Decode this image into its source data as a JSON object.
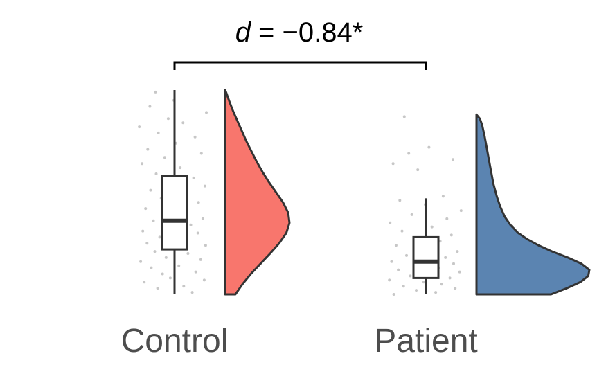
{
  "chart_data": {
    "type": "raincloud",
    "title": "",
    "xlabel": "",
    "ylabel": "",
    "categories": [
      "Control",
      "Patient"
    ],
    "ylim": [
      0,
      1
    ],
    "annotation": {
      "symbol": "d",
      "text": " = −0.84*",
      "between": [
        "Control",
        "Patient"
      ]
    },
    "groups": [
      {
        "name": "Control",
        "color": "#F8766D",
        "box": {
          "min": 0.0,
          "q1": 0.22,
          "median": 0.36,
          "q3": 0.58,
          "max": 1.0
        },
        "density": [
          {
            "y": 0.0,
            "d": 0.16
          },
          {
            "y": 0.05,
            "d": 0.27
          },
          {
            "y": 0.1,
            "d": 0.4
          },
          {
            "y": 0.15,
            "d": 0.55
          },
          {
            "y": 0.2,
            "d": 0.7
          },
          {
            "y": 0.25,
            "d": 0.84
          },
          {
            "y": 0.3,
            "d": 0.95
          },
          {
            "y": 0.35,
            "d": 1.0
          },
          {
            "y": 0.4,
            "d": 0.98
          },
          {
            "y": 0.45,
            "d": 0.9
          },
          {
            "y": 0.5,
            "d": 0.79
          },
          {
            "y": 0.55,
            "d": 0.68
          },
          {
            "y": 0.6,
            "d": 0.58
          },
          {
            "y": 0.65,
            "d": 0.49
          },
          {
            "y": 0.7,
            "d": 0.41
          },
          {
            "y": 0.75,
            "d": 0.33
          },
          {
            "y": 0.8,
            "d": 0.26
          },
          {
            "y": 0.85,
            "d": 0.19
          },
          {
            "y": 0.9,
            "d": 0.12
          },
          {
            "y": 0.95,
            "d": 0.06
          },
          {
            "y": 0.985,
            "d": 0.02
          },
          {
            "y": 1.0,
            "d": 0.0
          }
        ],
        "points": [
          {
            "y": 0.01,
            "j": 0.78
          },
          {
            "y": 0.03,
            "j": 0.29
          },
          {
            "y": 0.04,
            "j": 0.66
          },
          {
            "y": 0.06,
            "j": 0.1
          },
          {
            "y": 0.07,
            "j": 0.95
          },
          {
            "y": 0.08,
            "j": 0.47
          },
          {
            "y": 0.1,
            "j": 0.36
          },
          {
            "y": 0.11,
            "j": 0.83
          },
          {
            "y": 0.13,
            "j": 0.2
          },
          {
            "y": 0.14,
            "j": 0.59
          },
          {
            "y": 0.16,
            "j": 0.05
          },
          {
            "y": 0.17,
            "j": 0.9
          },
          {
            "y": 0.18,
            "j": 0.41
          },
          {
            "y": 0.2,
            "j": 0.72
          },
          {
            "y": 0.21,
            "j": 0.25
          },
          {
            "y": 0.23,
            "j": 0.54
          },
          {
            "y": 0.24,
            "j": 0.97
          },
          {
            "y": 0.25,
            "j": 0.14
          },
          {
            "y": 0.27,
            "j": 0.63
          },
          {
            "y": 0.28,
            "j": 0.32
          },
          {
            "y": 0.3,
            "j": 0.86
          },
          {
            "y": 0.31,
            "j": 0.08
          },
          {
            "y": 0.33,
            "j": 0.5
          },
          {
            "y": 0.34,
            "j": 0.76
          },
          {
            "y": 0.36,
            "j": 0.23
          },
          {
            "y": 0.37,
            "j": 0.93
          },
          {
            "y": 0.39,
            "j": 0.43
          },
          {
            "y": 0.4,
            "j": 0.68
          },
          {
            "y": 0.42,
            "j": 0.12
          },
          {
            "y": 0.44,
            "j": 0.58
          },
          {
            "y": 0.45,
            "j": 0.87
          },
          {
            "y": 0.47,
            "j": 0.34
          },
          {
            "y": 0.49,
            "j": 0.7
          },
          {
            "y": 0.51,
            "j": 0.19
          },
          {
            "y": 0.53,
            "j": 0.96
          },
          {
            "y": 0.55,
            "j": 0.46
          },
          {
            "y": 0.57,
            "j": 0.8
          },
          {
            "y": 0.59,
            "j": 0.27
          },
          {
            "y": 0.62,
            "j": 0.61
          },
          {
            "y": 0.64,
            "j": 0.07
          },
          {
            "y": 0.67,
            "j": 0.39
          },
          {
            "y": 0.69,
            "j": 0.91
          },
          {
            "y": 0.71,
            "j": 0.15
          },
          {
            "y": 0.74,
            "j": 0.55
          },
          {
            "y": 0.77,
            "j": 0.82
          },
          {
            "y": 0.79,
            "j": 0.3
          },
          {
            "y": 0.82,
            "j": 0.03
          },
          {
            "y": 0.84,
            "j": 0.65
          },
          {
            "y": 0.86,
            "j": 0.44
          },
          {
            "y": 0.89,
            "j": 0.98
          },
          {
            "y": 0.92,
            "j": 0.18
          },
          {
            "y": 0.95,
            "j": 0.52
          },
          {
            "y": 0.99,
            "j": 0.26
          }
        ]
      },
      {
        "name": "Patient",
        "color": "#5B84B1",
        "box": {
          "min": 0.0,
          "q1": 0.08,
          "median": 0.16,
          "q3": 0.28,
          "max": 0.47
        },
        "density": [
          {
            "y": 0.0,
            "d": 0.66
          },
          {
            "y": 0.03,
            "d": 0.8
          },
          {
            "y": 0.06,
            "d": 0.92
          },
          {
            "y": 0.09,
            "d": 0.99
          },
          {
            "y": 0.12,
            "d": 1.0
          },
          {
            "y": 0.15,
            "d": 0.93
          },
          {
            "y": 0.18,
            "d": 0.81
          },
          {
            "y": 0.21,
            "d": 0.67
          },
          {
            "y": 0.24,
            "d": 0.55
          },
          {
            "y": 0.27,
            "d": 0.45
          },
          {
            "y": 0.3,
            "d": 0.37
          },
          {
            "y": 0.34,
            "d": 0.3
          },
          {
            "y": 0.38,
            "d": 0.25
          },
          {
            "y": 0.43,
            "d": 0.21
          },
          {
            "y": 0.48,
            "d": 0.18
          },
          {
            "y": 0.54,
            "d": 0.15
          },
          {
            "y": 0.6,
            "d": 0.13
          },
          {
            "y": 0.66,
            "d": 0.11
          },
          {
            "y": 0.72,
            "d": 0.09
          },
          {
            "y": 0.78,
            "d": 0.07
          },
          {
            "y": 0.83,
            "d": 0.05
          },
          {
            "y": 0.86,
            "d": 0.03
          },
          {
            "y": 0.88,
            "d": 0.0
          }
        ],
        "points": [
          {
            "y": 0.0,
            "j": 0.08
          },
          {
            "y": 0.01,
            "j": 0.64
          },
          {
            "y": 0.02,
            "j": 0.38
          },
          {
            "y": 0.03,
            "j": 0.9
          },
          {
            "y": 0.04,
            "j": 0.21
          },
          {
            "y": 0.05,
            "j": 0.72
          },
          {
            "y": 0.06,
            "j": 0.48
          },
          {
            "y": 0.07,
            "j": 0.02
          },
          {
            "y": 0.08,
            "j": 0.83
          },
          {
            "y": 0.09,
            "j": 0.3
          },
          {
            "y": 0.1,
            "j": 0.57
          },
          {
            "y": 0.11,
            "j": 0.96
          },
          {
            "y": 0.12,
            "j": 0.14
          },
          {
            "y": 0.13,
            "j": 0.68
          },
          {
            "y": 0.14,
            "j": 0.42
          },
          {
            "y": 0.15,
            "j": 0.88
          },
          {
            "y": 0.16,
            "j": 0.05
          },
          {
            "y": 0.17,
            "j": 0.53
          },
          {
            "y": 0.18,
            "j": 0.77
          },
          {
            "y": 0.19,
            "j": 0.25
          },
          {
            "y": 0.2,
            "j": 0.61
          },
          {
            "y": 0.21,
            "j": 0.93
          },
          {
            "y": 0.23,
            "j": 0.35
          },
          {
            "y": 0.24,
            "j": 0.11
          },
          {
            "y": 0.26,
            "j": 0.7
          },
          {
            "y": 0.27,
            "j": 0.46
          },
          {
            "y": 0.29,
            "j": 0.85
          },
          {
            "y": 0.31,
            "j": 0.19
          },
          {
            "y": 0.33,
            "j": 0.59
          },
          {
            "y": 0.35,
            "j": 0.03
          },
          {
            "y": 0.37,
            "j": 0.79
          },
          {
            "y": 0.39,
            "j": 0.32
          },
          {
            "y": 0.41,
            "j": 0.98
          },
          {
            "y": 0.44,
            "j": 0.5
          },
          {
            "y": 0.46,
            "j": 0.16
          },
          {
            "y": 0.48,
            "j": 0.74
          },
          {
            "y": 0.61,
            "j": 0.4
          },
          {
            "y": 0.64,
            "j": 0.07
          },
          {
            "y": 0.66,
            "j": 0.87
          },
          {
            "y": 0.69,
            "j": 0.28
          },
          {
            "y": 0.72,
            "j": 0.55
          },
          {
            "y": 0.87,
            "j": 0.22
          }
        ]
      }
    ]
  }
}
